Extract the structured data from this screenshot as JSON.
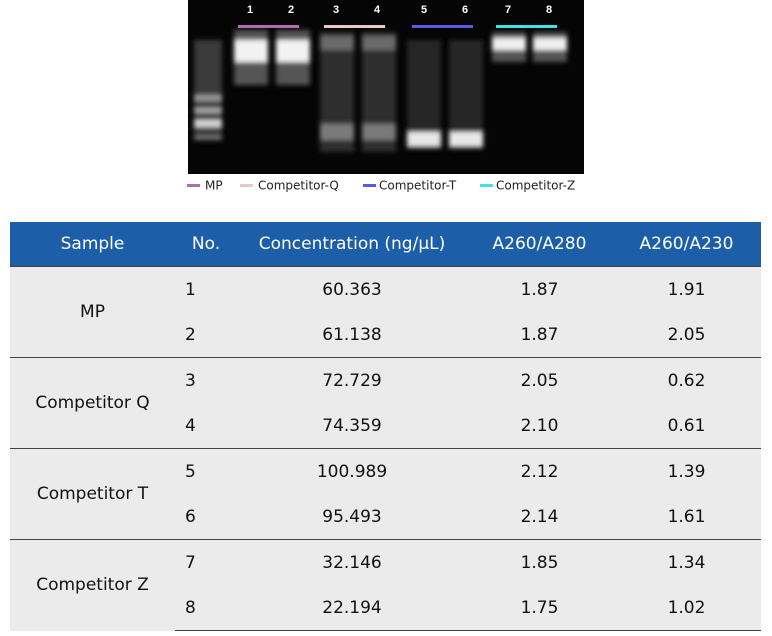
{
  "gel": {
    "lanes": [
      "1",
      "2",
      "3",
      "4",
      "5",
      "6",
      "7",
      "8"
    ],
    "legend": [
      {
        "label": "MP",
        "color": "#b36bb3"
      },
      {
        "label": "Competitor-Q",
        "color": "#e9c9c6"
      },
      {
        "label": "Competitor-T",
        "color": "#5a5ae6"
      },
      {
        "label": "Competitor-Z",
        "color": "#3fe3e3"
      }
    ]
  },
  "table": {
    "header": [
      "Sample",
      "No.",
      "Concentration (ng/µL)",
      "A260/A280",
      "A260/A230"
    ],
    "groups": [
      {
        "sample": "MP",
        "rows": [
          [
            "1",
            "60.363",
            "1.87",
            "1.91"
          ],
          [
            "2",
            "61.138",
            "1.87",
            "2.05"
          ]
        ]
      },
      {
        "sample": "Competitor Q",
        "rows": [
          [
            "3",
            "72.729",
            "2.05",
            "0.62"
          ],
          [
            "4",
            "74.359",
            "2.10",
            "0.61"
          ]
        ]
      },
      {
        "sample": "Competitor T",
        "rows": [
          [
            "5",
            "100.989",
            "2.12",
            "1.39"
          ],
          [
            "6",
            "95.493",
            "2.14",
            "1.61"
          ]
        ]
      },
      {
        "sample": "Competitor Z",
        "rows": [
          [
            "7",
            "32.146",
            "1.85",
            "1.34"
          ],
          [
            "8",
            "22.194",
            "1.75",
            "1.02"
          ]
        ]
      }
    ]
  }
}
